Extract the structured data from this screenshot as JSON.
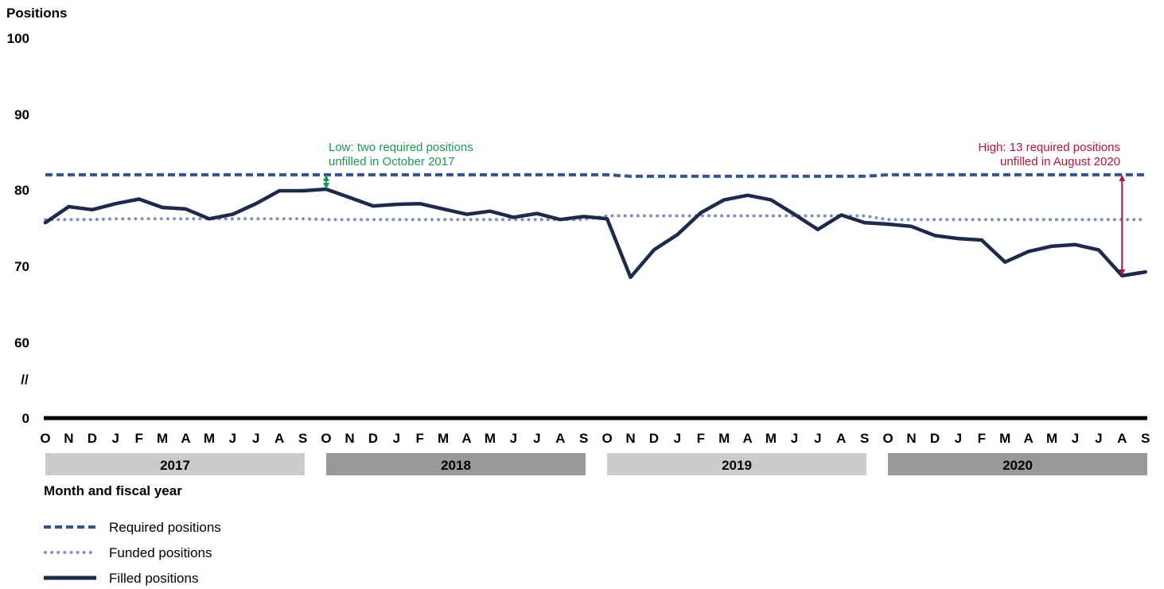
{
  "chart_data": {
    "type": "line",
    "ylabel": "Positions",
    "xlabel": "Month and fiscal year",
    "y_ticks": [
      "100",
      "90",
      "80",
      "70",
      "60",
      "0"
    ],
    "axis_break": "//",
    "ylim": [
      60,
      100
    ],
    "categories": [
      "O",
      "N",
      "D",
      "J",
      "F",
      "M",
      "A",
      "M",
      "J",
      "J",
      "A",
      "S",
      "O",
      "N",
      "D",
      "J",
      "F",
      "M",
      "A",
      "M",
      "J",
      "J",
      "A",
      "S",
      "O",
      "N",
      "D",
      "J",
      "F",
      "M",
      "A",
      "M",
      "J",
      "J",
      "A",
      "S",
      "O",
      "N",
      "D",
      "J",
      "F",
      "M",
      "A",
      "M",
      "J",
      "J",
      "A",
      "S"
    ],
    "fiscal_years": [
      "2017",
      "2018",
      "2019",
      "2020"
    ],
    "fiscal_year_colors": [
      "#cccccc",
      "#999999",
      "#cccccc",
      "#999999"
    ],
    "series": [
      {
        "name": "Required positions",
        "style": "dashed",
        "color": "#2f5597",
        "values": [
          82,
          82,
          82,
          82,
          82,
          82,
          82,
          82,
          82,
          82,
          82,
          82,
          82,
          82,
          82,
          82,
          82,
          82,
          82,
          82,
          82,
          82,
          82,
          82,
          82,
          81.8,
          81.8,
          81.8,
          81.8,
          81.8,
          81.8,
          81.8,
          81.8,
          81.8,
          81.8,
          81.8,
          82,
          82,
          82,
          82,
          82,
          82,
          82,
          82,
          82,
          82,
          82,
          82
        ]
      },
      {
        "name": "Funded positions",
        "style": "dotted",
        "color": "#7f8fc0",
        "values": [
          76.1,
          76.1,
          76.1,
          76.2,
          76.2,
          76.2,
          76.2,
          76.2,
          76.2,
          76.2,
          76.2,
          76.2,
          76.1,
          76.1,
          76.1,
          76.1,
          76.1,
          76.1,
          76.1,
          76.1,
          76.1,
          76.1,
          76.1,
          76.1,
          76.6,
          76.6,
          76.6,
          76.6,
          76.6,
          76.6,
          76.6,
          76.6,
          76.6,
          76.6,
          76.6,
          76.6,
          76.1,
          76.1,
          76.1,
          76.1,
          76.1,
          76.1,
          76.1,
          76.1,
          76.1,
          76.1,
          76.1,
          76.1
        ]
      },
      {
        "name": "Filled positions",
        "style": "solid",
        "color": "#1c2b4c",
        "values": [
          75.7,
          77.8,
          77.4,
          78.2,
          78.8,
          77.7,
          77.5,
          76.2,
          76.8,
          78.2,
          79.9,
          79.9,
          80.1,
          79,
          77.9,
          78.1,
          78.2,
          77.5,
          76.8,
          77.2,
          76.4,
          76.9,
          76.1,
          76.5,
          76.2,
          68.5,
          72.1,
          74.1,
          77,
          78.7,
          79.3,
          78.7,
          76.8,
          74.8,
          76.7,
          75.7,
          75.5,
          75.2,
          74,
          73.6,
          73.4,
          70.5,
          71.9,
          72.6,
          72.8,
          72.1,
          68.7,
          69.2
        ]
      }
    ],
    "annotations": {
      "low": {
        "line1": "Low: two required positions",
        "line2": "unfilled in October 2017",
        "index": 12,
        "from": 82,
        "to": 80.1,
        "color": "#1a9850"
      },
      "high": {
        "line1": "High: 13 required positions",
        "line2": "unfilled in August 2020",
        "index": 46,
        "from": 82,
        "to": 68.7,
        "color": "#b5123a"
      }
    }
  }
}
